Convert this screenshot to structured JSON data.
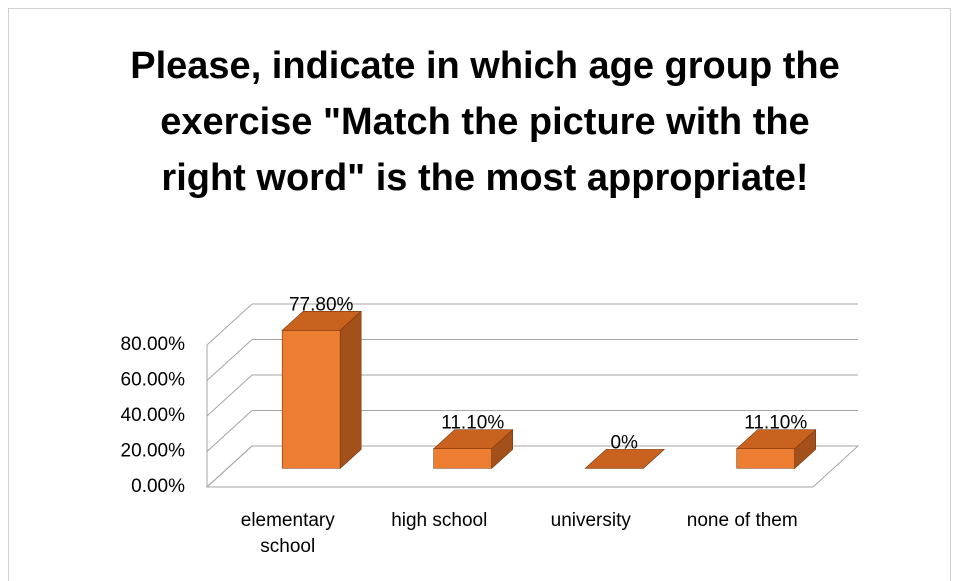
{
  "chart_data": {
    "type": "bar",
    "title": "Please, indicate in which age group the exercise \"Match the picture with the right word\" is the most appropriate!",
    "categories": [
      "elementary school",
      "high school",
      "university",
      "none of them"
    ],
    "values": [
      77.8,
      11.1,
      0,
      11.1
    ],
    "value_labels": [
      "77.80%",
      "11.10%",
      "0%",
      "11.10%"
    ],
    "color": "#ED7D31",
    "ylim": [
      0,
      80
    ],
    "yticks": [
      {
        "value": 0,
        "label": "0.00%"
      },
      {
        "value": 20,
        "label": "20.00%"
      },
      {
        "value": 40,
        "label": "40.00%"
      },
      {
        "value": 60,
        "label": "60.00%"
      },
      {
        "value": 80,
        "label": "80.00%"
      }
    ],
    "grid": true
  }
}
